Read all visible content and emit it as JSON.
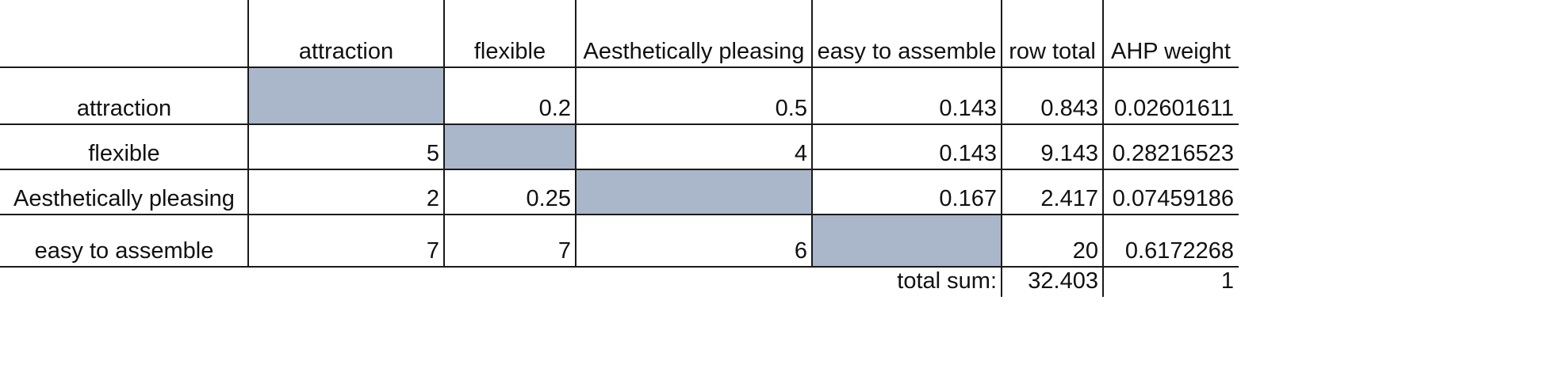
{
  "table": {
    "columns": [
      "attraction",
      "flexible",
      "Aesthetically pleasing",
      "easy to assemble",
      "row total",
      "AHP weight"
    ],
    "rows": [
      {
        "label": "attraction",
        "values": [
          "",
          "0.2",
          "0.5",
          "0.143",
          "0.843",
          "0.02601611"
        ]
      },
      {
        "label": "flexible",
        "values": [
          "5",
          "",
          "4",
          "0.143",
          "9.143",
          "0.28216523"
        ]
      },
      {
        "label": "Aesthetically pleasing",
        "values": [
          "2",
          "0.25",
          "",
          "0.167",
          "2.417",
          "0.07459186"
        ]
      },
      {
        "label": "easy to assemble",
        "values": [
          "7",
          "7",
          "6",
          "",
          "20",
          "0.6172268"
        ]
      }
    ],
    "total_label": "total sum:",
    "total_row_total": "32.403",
    "total_weight": "1"
  },
  "colors": {
    "diagonal_fill": "#aab6c9",
    "grid": "#1a1a1a"
  }
}
